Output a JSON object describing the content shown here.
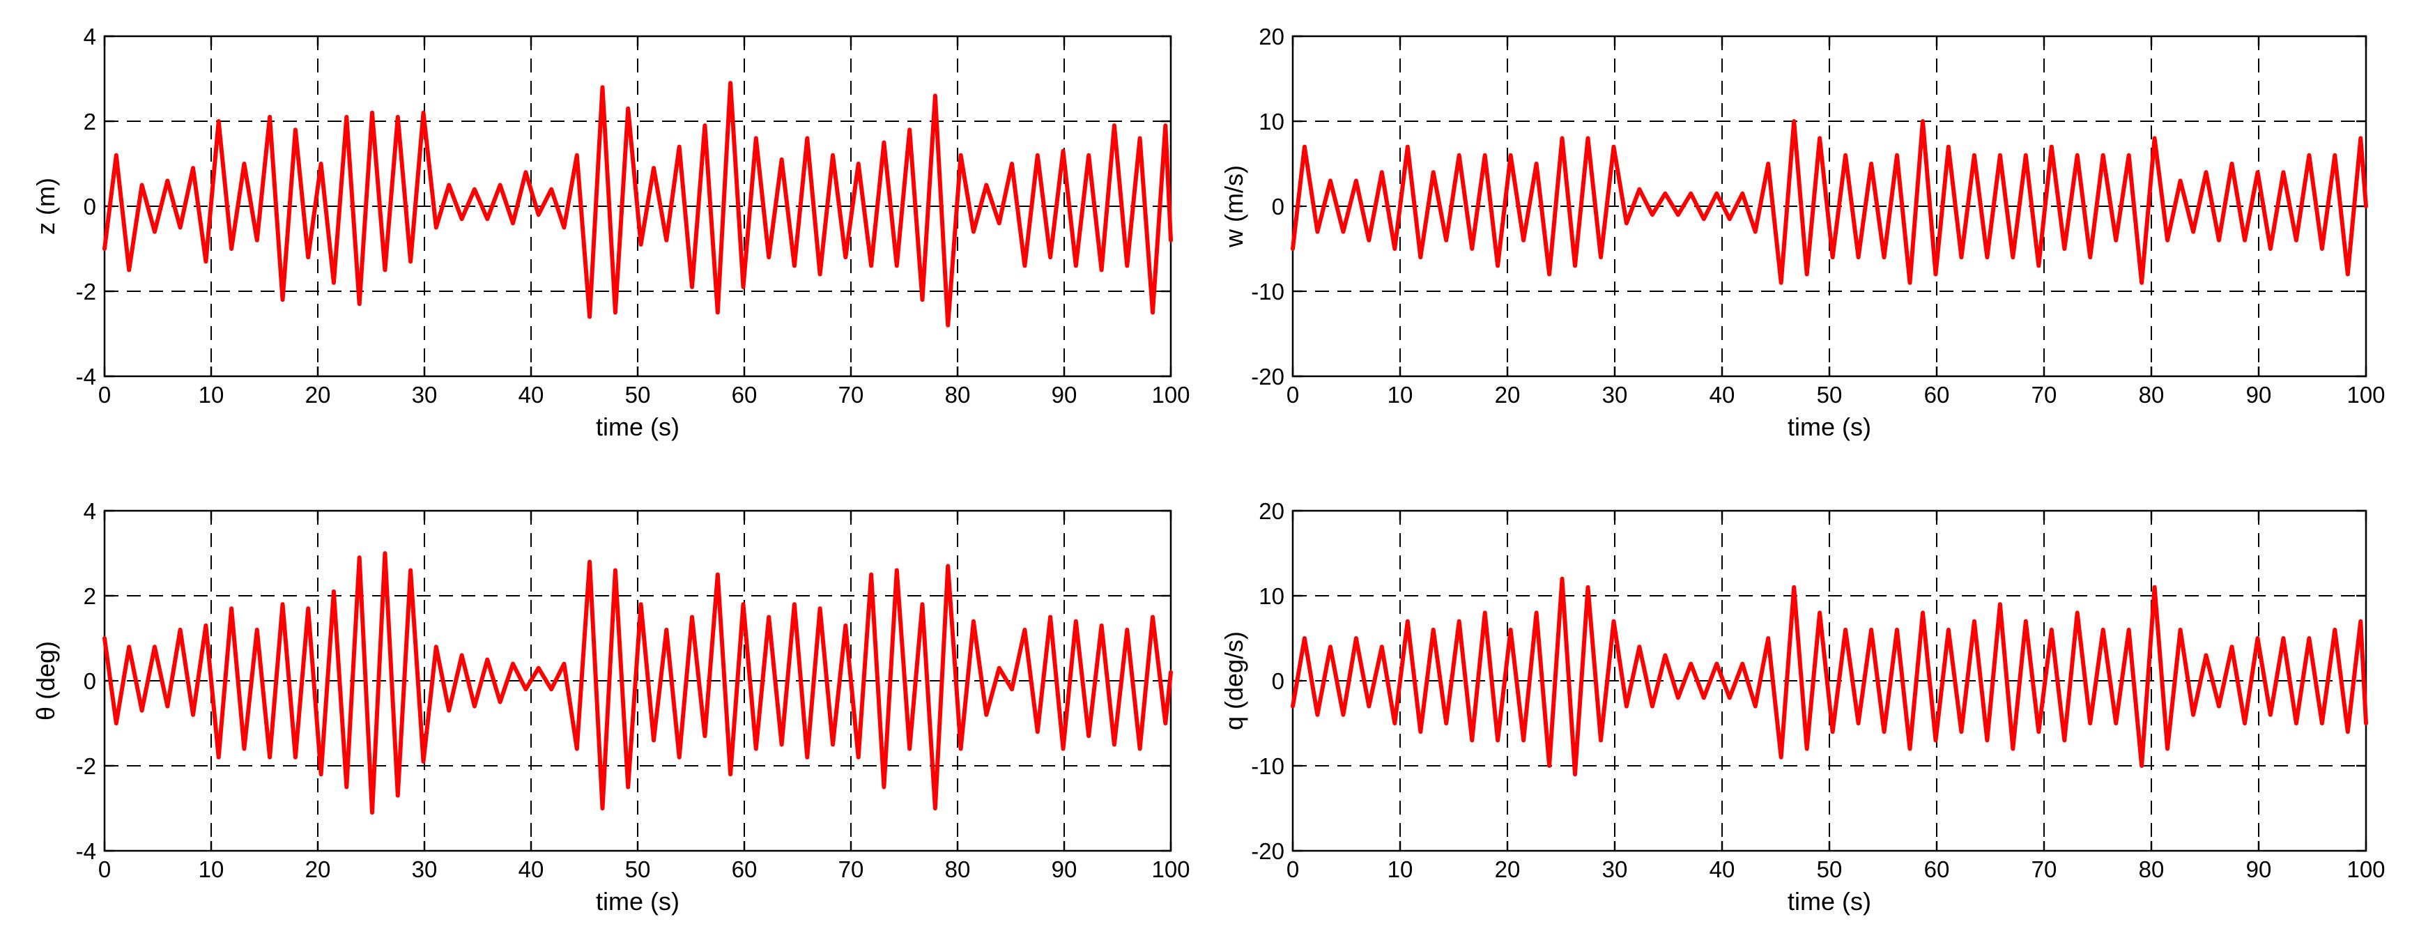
{
  "colors": {
    "series": "#ff0000",
    "grid": "#000000",
    "background": "#ffffff"
  },
  "chart_data": [
    {
      "type": "line",
      "xlabel": "time (s)",
      "ylabel": "z (m)",
      "xlim": [
        0,
        100
      ],
      "ylim": [
        -4,
        4
      ],
      "xticks": [
        0,
        10,
        20,
        30,
        40,
        50,
        60,
        70,
        80,
        90,
        100
      ],
      "yticks": [
        -4,
        -2,
        0,
        2,
        4
      ],
      "grid": true,
      "series": [
        {
          "color": "#ff0000",
          "x": [
            0,
            1.1,
            2.3,
            3.5,
            4.7,
            5.9,
            7.1,
            8.3,
            9.5,
            10.7,
            11.9,
            13.1,
            14.3,
            15.5,
            16.7,
            17.9,
            19.1,
            20.3,
            21.5,
            22.7,
            23.9,
            25.1,
            26.3,
            27.5,
            28.7,
            29.9,
            31.1,
            32.3,
            33.5,
            34.7,
            35.9,
            37.1,
            38.3,
            39.5,
            40.7,
            41.9,
            43.1,
            44.3,
            45.5,
            46.7,
            47.9,
            49.1,
            50.3,
            51.5,
            52.7,
            53.9,
            55.1,
            56.3,
            57.5,
            58.7,
            59.9,
            61.1,
            62.3,
            63.5,
            64.7,
            65.9,
            67.1,
            68.3,
            69.5,
            70.7,
            71.9,
            73.1,
            74.3,
            75.5,
            76.7,
            77.9,
            79.1,
            80.3,
            81.5,
            82.7,
            83.9,
            85.1,
            86.3,
            87.5,
            88.7,
            89.9,
            91.1,
            92.3,
            93.5,
            94.7,
            95.9,
            97.1,
            98.3,
            99.5,
            100
          ],
          "y": [
            -1,
            1.2,
            -1.5,
            0.5,
            -0.6,
            0.6,
            -0.5,
            0.9,
            -1.3,
            2,
            -1,
            1,
            -0.8,
            2.1,
            -2.2,
            1.8,
            -1.2,
            1,
            -1.8,
            2.1,
            -2.3,
            2.2,
            -1.5,
            2.1,
            -1.3,
            2.2,
            -0.5,
            0.5,
            -0.3,
            0.4,
            -0.3,
            0.5,
            -0.4,
            0.8,
            -0.2,
            0.4,
            -0.5,
            1.2,
            -2.6,
            2.8,
            -2.5,
            2.3,
            -0.9,
            0.9,
            -0.8,
            1.4,
            -1.9,
            1.9,
            -2.5,
            2.9,
            -1.9,
            1.6,
            -1.2,
            1.1,
            -1.4,
            1.6,
            -1.6,
            1.2,
            -1.2,
            1,
            -1.4,
            1.5,
            -1.4,
            1.8,
            -2.2,
            2.6,
            -2.8,
            1.2,
            -0.6,
            0.5,
            -0.4,
            1,
            -1.4,
            1.2,
            -1.2,
            1.3,
            -1.4,
            1.2,
            -1.5,
            1.9,
            -1.4,
            1.6,
            -2.5,
            1.9,
            -0.8
          ]
        }
      ]
    },
    {
      "type": "line",
      "xlabel": "time (s)",
      "ylabel": "w (m/s)",
      "xlim": [
        0,
        100
      ],
      "ylim": [
        -20,
        20
      ],
      "xticks": [
        0,
        10,
        20,
        30,
        40,
        50,
        60,
        70,
        80,
        90,
        100
      ],
      "yticks": [
        -20,
        -10,
        0,
        10,
        20
      ],
      "grid": true,
      "series": [
        {
          "color": "#ff0000",
          "x": [
            0,
            1.1,
            2.3,
            3.5,
            4.7,
            5.9,
            7.1,
            8.3,
            9.5,
            10.7,
            11.9,
            13.1,
            14.3,
            15.5,
            16.7,
            17.9,
            19.1,
            20.3,
            21.5,
            22.7,
            23.9,
            25.1,
            26.3,
            27.5,
            28.7,
            29.9,
            31.1,
            32.3,
            33.5,
            34.7,
            35.9,
            37.1,
            38.3,
            39.5,
            40.7,
            41.9,
            43.1,
            44.3,
            45.5,
            46.7,
            47.9,
            49.1,
            50.3,
            51.5,
            52.7,
            53.9,
            55.1,
            56.3,
            57.5,
            58.7,
            59.9,
            61.1,
            62.3,
            63.5,
            64.7,
            65.9,
            67.1,
            68.3,
            69.5,
            70.7,
            71.9,
            73.1,
            74.3,
            75.5,
            76.7,
            77.9,
            79.1,
            80.3,
            81.5,
            82.7,
            83.9,
            85.1,
            86.3,
            87.5,
            88.7,
            89.9,
            91.1,
            92.3,
            93.5,
            94.7,
            95.9,
            97.1,
            98.3,
            99.5,
            100
          ],
          "y": [
            -5,
            7,
            -3,
            3,
            -3,
            3,
            -4,
            4,
            -5,
            7,
            -6,
            4,
            -4,
            6,
            -5,
            6,
            -7,
            6,
            -4,
            5,
            -8,
            8,
            -7,
            8,
            -6,
            7,
            -2,
            2,
            -1,
            1.5,
            -1,
            1.5,
            -1.5,
            1.5,
            -1.5,
            1.5,
            -3,
            5,
            -9,
            10,
            -8,
            8,
            -6,
            6,
            -6,
            5,
            -6,
            6,
            -9,
            10,
            -8,
            7,
            -6,
            6,
            -6,
            6,
            -6,
            6,
            -7,
            7,
            -5,
            6,
            -6,
            6,
            -4,
            6,
            -9,
            8,
            -4,
            3,
            -3,
            4,
            -4,
            5,
            -4,
            4,
            -5,
            4,
            -4,
            6,
            -5,
            6,
            -8,
            8,
            0
          ]
        }
      ]
    },
    {
      "type": "line",
      "xlabel": "time (s)",
      "ylabel": "θ (deg)",
      "xlim": [
        0,
        100
      ],
      "ylim": [
        -4,
        4
      ],
      "xticks": [
        0,
        10,
        20,
        30,
        40,
        50,
        60,
        70,
        80,
        90,
        100
      ],
      "yticks": [
        -4,
        -2,
        0,
        2,
        4
      ],
      "grid": true,
      "series": [
        {
          "color": "#ff0000",
          "x": [
            0,
            1.1,
            2.3,
            3.5,
            4.7,
            5.9,
            7.1,
            8.3,
            9.5,
            10.7,
            11.9,
            13.1,
            14.3,
            15.5,
            16.7,
            17.9,
            19.1,
            20.3,
            21.5,
            22.7,
            23.9,
            25.1,
            26.3,
            27.5,
            28.7,
            29.9,
            31.1,
            32.3,
            33.5,
            34.7,
            35.9,
            37.1,
            38.3,
            39.5,
            40.7,
            41.9,
            43.1,
            44.3,
            45.5,
            46.7,
            47.9,
            49.1,
            50.3,
            51.5,
            52.7,
            53.9,
            55.1,
            56.3,
            57.5,
            58.7,
            59.9,
            61.1,
            62.3,
            63.5,
            64.7,
            65.9,
            67.1,
            68.3,
            69.5,
            70.7,
            71.9,
            73.1,
            74.3,
            75.5,
            76.7,
            77.9,
            79.1,
            80.3,
            81.5,
            82.7,
            83.9,
            85.1,
            86.3,
            87.5,
            88.7,
            89.9,
            91.1,
            92.3,
            93.5,
            94.7,
            95.9,
            97.1,
            98.3,
            99.5,
            100
          ],
          "y": [
            1,
            -1,
            0.8,
            -0.7,
            0.8,
            -0.6,
            1.2,
            -0.8,
            1.3,
            -1.8,
            1.7,
            -1.6,
            1.2,
            -1.8,
            1.8,
            -1.8,
            1.7,
            -2.2,
            2.1,
            -2.5,
            2.9,
            -3.1,
            3,
            -2.7,
            2.6,
            -1.9,
            0.8,
            -0.7,
            0.6,
            -0.6,
            0.5,
            -0.5,
            0.4,
            -0.2,
            0.3,
            -0.2,
            0.4,
            -1.6,
            2.8,
            -3,
            2.6,
            -2.5,
            1.8,
            -1.4,
            1.2,
            -1.8,
            1.5,
            -1.3,
            2.5,
            -2.2,
            1.8,
            -1.6,
            1.5,
            -1.5,
            1.8,
            -1.8,
            1.7,
            -1.5,
            1.3,
            -1.8,
            2.5,
            -2.5,
            2.6,
            -1.6,
            1.8,
            -3,
            2.7,
            -1.6,
            1.4,
            -0.8,
            0.3,
            -0.2,
            1.2,
            -1.2,
            1.5,
            -1.6,
            1.4,
            -1.3,
            1.3,
            -1.5,
            1.2,
            -1.6,
            1.5,
            -1,
            0.2
          ]
        }
      ]
    },
    {
      "type": "line",
      "xlabel": "time (s)",
      "ylabel": "q (deg/s)",
      "xlim": [
        0,
        100
      ],
      "ylim": [
        -20,
        20
      ],
      "xticks": [
        0,
        10,
        20,
        30,
        40,
        50,
        60,
        70,
        80,
        90,
        100
      ],
      "yticks": [
        -20,
        -10,
        0,
        10,
        20
      ],
      "grid": true,
      "series": [
        {
          "color": "#ff0000",
          "x": [
            0,
            1.1,
            2.3,
            3.5,
            4.7,
            5.9,
            7.1,
            8.3,
            9.5,
            10.7,
            11.9,
            13.1,
            14.3,
            15.5,
            16.7,
            17.9,
            19.1,
            20.3,
            21.5,
            22.7,
            23.9,
            25.1,
            26.3,
            27.5,
            28.7,
            29.9,
            31.1,
            32.3,
            33.5,
            34.7,
            35.9,
            37.1,
            38.3,
            39.5,
            40.7,
            41.9,
            43.1,
            44.3,
            45.5,
            46.7,
            47.9,
            49.1,
            50.3,
            51.5,
            52.7,
            53.9,
            55.1,
            56.3,
            57.5,
            58.7,
            59.9,
            61.1,
            62.3,
            63.5,
            64.7,
            65.9,
            67.1,
            68.3,
            69.5,
            70.7,
            71.9,
            73.1,
            74.3,
            75.5,
            76.7,
            77.9,
            79.1,
            80.3,
            81.5,
            82.7,
            83.9,
            85.1,
            86.3,
            87.5,
            88.7,
            89.9,
            91.1,
            92.3,
            93.5,
            94.7,
            95.9,
            97.1,
            98.3,
            99.5,
            100
          ],
          "y": [
            -3,
            5,
            -4,
            4,
            -4,
            5,
            -3,
            4,
            -5,
            7,
            -6,
            6,
            -5,
            7,
            -7,
            8,
            -7,
            6,
            -7,
            8,
            -10,
            12,
            -11,
            11,
            -7,
            7,
            -3,
            4,
            -3,
            3,
            -2,
            2,
            -2,
            2,
            -2,
            2,
            -3,
            5,
            -9,
            11,
            -8,
            8,
            -6,
            6,
            -5,
            6,
            -6,
            6,
            -8,
            8,
            -7,
            6,
            -6,
            7,
            -7,
            9,
            -8,
            7,
            -6,
            6,
            -7,
            8,
            -5,
            6,
            -5,
            6,
            -10,
            11,
            -8,
            6,
            -4,
            3,
            -3,
            4,
            -5,
            5,
            -4,
            5,
            -5,
            5,
            -5,
            6,
            -6,
            7,
            -5
          ]
        }
      ]
    }
  ]
}
